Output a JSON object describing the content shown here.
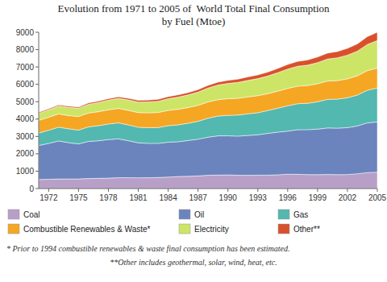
{
  "chart_data": {
    "type": "area",
    "stacked": true,
    "title": "Evolution from 1971 to 2005 of  World Total Final Consumption",
    "subtitle": "by Fuel (Mtoe)",
    "x": [
      1971,
      1972,
      1973,
      1974,
      1975,
      1976,
      1977,
      1978,
      1979,
      1980,
      1981,
      1982,
      1983,
      1984,
      1985,
      1986,
      1987,
      1988,
      1989,
      1990,
      1991,
      1992,
      1993,
      1994,
      1995,
      1996,
      1997,
      1998,
      1999,
      2000,
      2001,
      2002,
      2003,
      2004,
      2005
    ],
    "series": [
      {
        "name": "Coal",
        "color": "#b89fc8",
        "values": [
          519,
          533,
          551,
          554,
          554,
          576,
          588,
          600,
          625,
          626,
          620,
          622,
          636,
          661,
          692,
          703,
          726,
          765,
          776,
          785,
          764,
          762,
          768,
          770,
          793,
          823,
          820,
          803,
          799,
          807,
          800,
          806,
          852,
          922,
          945
        ]
      },
      {
        "name": "Oil",
        "color": "#6b84be",
        "values": [
          1961,
          2062,
          2188,
          2087,
          2017,
          2137,
          2164,
          2220,
          2234,
          2130,
          2011,
          1980,
          1967,
          2006,
          2001,
          2065,
          2115,
          2192,
          2258,
          2251,
          2255,
          2295,
          2328,
          2406,
          2456,
          2484,
          2567,
          2589,
          2621,
          2682,
          2675,
          2702,
          2753,
          2858,
          2890
        ]
      },
      {
        "name": "Gas",
        "color": "#52b8b0",
        "values": [
          716,
          760,
          793,
          798,
          795,
          840,
          866,
          897,
          924,
          909,
          897,
          903,
          909,
          950,
          975,
          990,
          1030,
          1092,
          1138,
          1179,
          1213,
          1244,
          1268,
          1318,
          1378,
          1458,
          1497,
          1516,
          1575,
          1647,
          1672,
          1720,
          1779,
          1879,
          1955
        ]
      },
      {
        "name": "Combustible Renewables & Waste*",
        "color": "#f5a623",
        "values": [
          728,
          747,
          761,
          764,
          779,
          793,
          807,
          817,
          829,
          836,
          844,
          855,
          869,
          882,
          897,
          905,
          919,
          933,
          945,
          956,
          962,
          972,
          985,
          964,
          979,
          1000,
          1011,
          1024,
          1038,
          1051,
          1067,
          1088,
          1107,
          1127,
          1149
        ]
      },
      {
        "name": "Electricity",
        "color": "#cde566",
        "values": [
          404,
          432,
          459,
          472,
          478,
          507,
          530,
          558,
          583,
          597,
          609,
          627,
          646,
          673,
          703,
          730,
          762,
          808,
          846,
          882,
          916,
          953,
          980,
          1020,
          1066,
          1113,
          1148,
          1173,
          1218,
          1270,
          1316,
          1365,
          1424,
          1511,
          1580
        ]
      },
      {
        "name": "Other**",
        "color": "#d9512c",
        "values": [
          56,
          60,
          63,
          65,
          68,
          72,
          76,
          81,
          87,
          93,
          99,
          105,
          112,
          119,
          126,
          133,
          141,
          151,
          162,
          174,
          185,
          198,
          210,
          225,
          241,
          261,
          280,
          298,
          318,
          341,
          362,
          387,
          415,
          447,
          478
        ]
      }
    ],
    "xlim": [
      1971,
      2005
    ],
    "xticks": [
      1972,
      1975,
      1978,
      1981,
      1984,
      1987,
      1990,
      1993,
      1996,
      1999,
      2002,
      2005
    ],
    "ylim": [
      0,
      9000
    ],
    "yticks": [
      0,
      1000,
      2000,
      3000,
      4000,
      5000,
      6000,
      7000,
      8000,
      9000
    ],
    "grid": false,
    "legend": "bottom",
    "annotations": [
      "* Prior to 1994 combustible renewables & waste final consumption has been estimated.",
      "**Other includes geothermal, solar, wind, heat, etc."
    ]
  }
}
